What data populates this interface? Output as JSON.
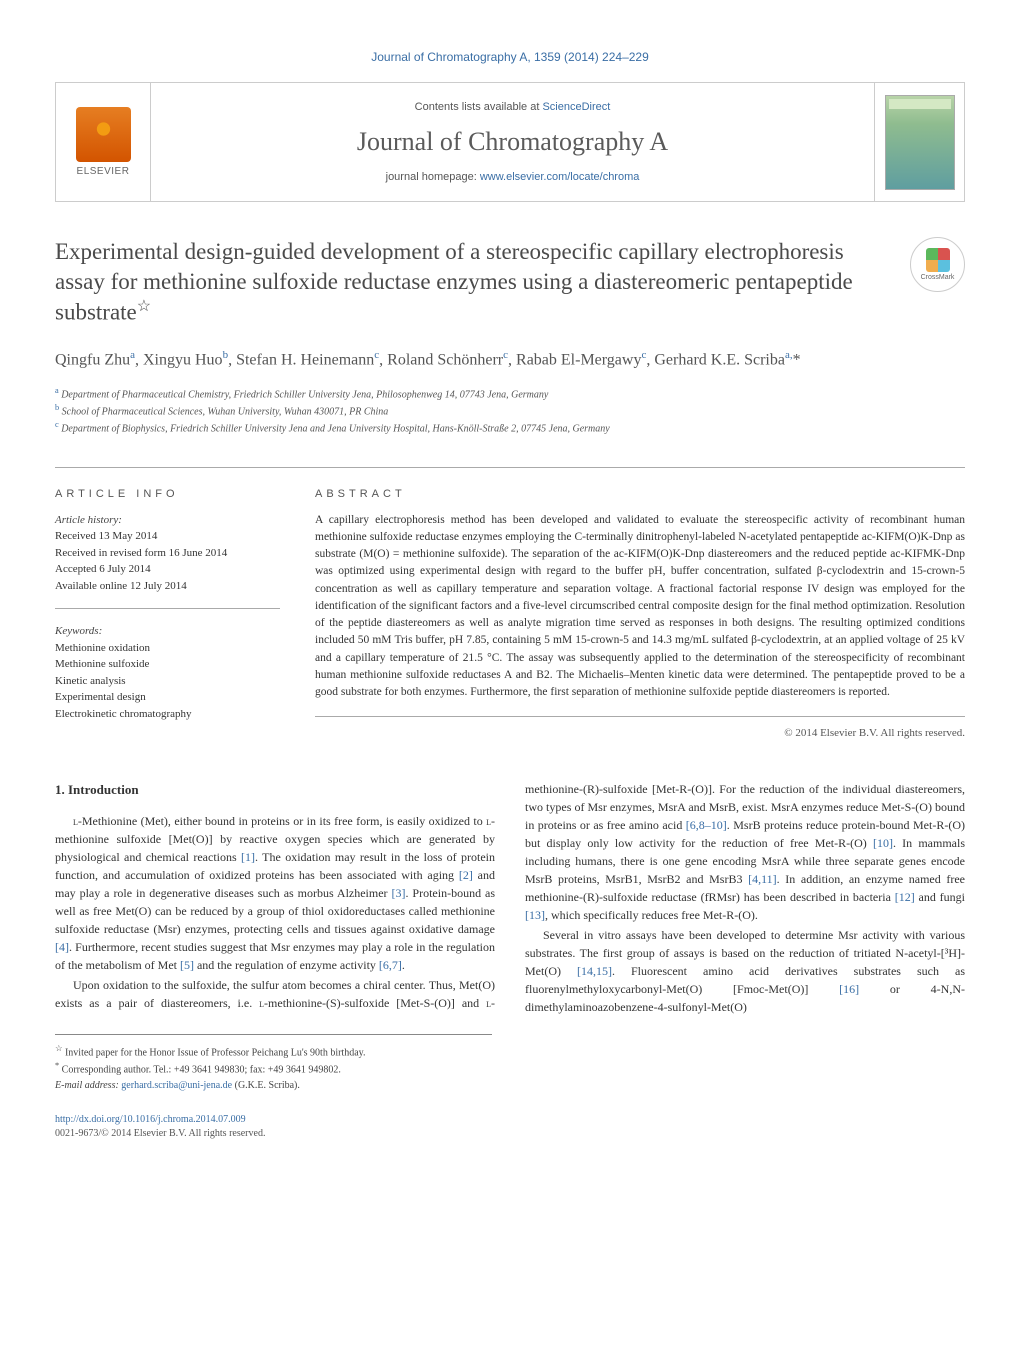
{
  "citation": "Journal of Chromatography A, 1359 (2014) 224–229",
  "header": {
    "elsevier": "ELSEVIER",
    "contents_prefix": "Contents lists available at ",
    "contents_link": "ScienceDirect",
    "journal_name": "Journal of Chromatography A",
    "homepage_prefix": "journal homepage: ",
    "homepage_link": "www.elsevier.com/locate/chroma"
  },
  "crossmark": "CrossMark",
  "title": "Experimental design-guided development of a stereospecific capillary electrophoresis assay for methionine sulfoxide reductase enzymes using a diastereomeric pentapeptide substrate",
  "title_star": "☆",
  "authors_html": "Qingfu Zhu<sup>a</sup>, Xingyu Huo<sup>b</sup>, Stefan H. Heinemann<sup>c</sup>, Roland Schönherr<sup>c</sup>, Rabab El-Mergawy<sup>c</sup>, Gerhard K.E. Scriba<sup>a,</sup>*",
  "affiliations": [
    {
      "sup": "a",
      "text": "Department of Pharmaceutical Chemistry, Friedrich Schiller University Jena, Philosophenweg 14, 07743 Jena, Germany"
    },
    {
      "sup": "b",
      "text": "School of Pharmaceutical Sciences, Wuhan University, Wuhan 430071, PR China"
    },
    {
      "sup": "c",
      "text": "Department of Biophysics, Friedrich Schiller University Jena and Jena University Hospital, Hans-Knöll-Straße 2, 07745 Jena, Germany"
    }
  ],
  "article_info": {
    "heading": "ARTICLE INFO",
    "history_label": "Article history:",
    "history": [
      "Received 13 May 2014",
      "Received in revised form 16 June 2014",
      "Accepted 6 July 2014",
      "Available online 12 July 2014"
    ],
    "keywords_label": "Keywords:",
    "keywords": [
      "Methionine oxidation",
      "Methionine sulfoxide",
      "Kinetic analysis",
      "Experimental design",
      "Electrokinetic chromatography"
    ]
  },
  "abstract": {
    "heading": "ABSTRACT",
    "text": "A capillary electrophoresis method has been developed and validated to evaluate the stereospecific activity of recombinant human methionine sulfoxide reductase enzymes employing the C-terminally dinitrophenyl-labeled N-acetylated pentapeptide ac-KIFM(O)K-Dnp as substrate (M(O) = methionine sulfoxide). The separation of the ac-KIFM(O)K-Dnp diastereomers and the reduced peptide ac-KIFMK-Dnp was optimized using experimental design with regard to the buffer pH, buffer concentration, sulfated β-cyclodextrin and 15-crown-5 concentration as well as capillary temperature and separation voltage. A fractional factorial response IV design was employed for the identification of the significant factors and a five-level circumscribed central composite design for the final method optimization. Resolution of the peptide diastereomers as well as analyte migration time served as responses in both designs. The resulting optimized conditions included 50 mM Tris buffer, pH 7.85, containing 5 mM 15-crown-5 and 14.3 mg/mL sulfated β-cyclodextrin, at an applied voltage of 25 kV and a capillary temperature of 21.5 °C. The assay was subsequently applied to the determination of the stereospecificity of recombinant human methionine sulfoxide reductases A and B2. The Michaelis–Menten kinetic data were determined. The pentapeptide proved to be a good substrate for both enzymes. Furthermore, the first separation of methionine sulfoxide peptide diastereomers is reported.",
    "copyright": "© 2014 Elsevier B.V. All rights reserved."
  },
  "body": {
    "intro_heading": "1.  Introduction",
    "p1_pre": "-Methionine (Met), either bound in proteins or in its free form, is easily oxidized to ",
    "p1_l2": "-methionine sulfoxide [Met(O)] by reactive oxygen species which are generated by physiological and chemical reactions ",
    "p1_r1": "[1]",
    "p1_mid1": ". The oxidation may result in the loss of protein function, and accumulation of oxidized proteins has been associated with aging ",
    "p1_r2": "[2]",
    "p1_mid2": " and may play a role in degenerative diseases such as morbus Alzheimer ",
    "p1_r3": "[3]",
    "p1_mid3": ". Protein-bound as well as free Met(O) can be reduced by a group of thiol oxidoreductases called methionine sulfoxide reductase (Msr) enzymes, protecting cells and tissues against oxidative damage ",
    "p1_r4": "[4]",
    "p1_mid4": ". Furthermore, recent studies suggest that Msr enzymes may play a role in the regulation of the metabolism of Met ",
    "p1_r5": "[5]",
    "p1_mid5": " and the regulation of enzyme activity ",
    "p1_r6": "[6,7]",
    "p1_end": ".",
    "p2_pre": "Upon oxidation to the sulfoxide, the sulfur atom becomes a chiral center. Thus, Met(O) exists as a pair of diastereomers, i.e. ",
    "p2_l1": "-methionine-(S)-sulfoxide [Met-S-(O)] and ",
    "p2_l2": "-methionine-(R)-sulfoxide [Met-R-(O)]. For the reduction of the individual diastereomers, two types of Msr enzymes, MsrA and MsrB, exist. MsrA enzymes reduce Met-S-(O) bound in proteins or as free amino acid ",
    "p2_r1": "[6,8–10]",
    "p2_mid1": ". MsrB proteins reduce protein-bound Met-R-(O) but display only low activity for the reduction of free Met-R-(O) ",
    "p2_r2": "[10]",
    "p2_mid2": ". In mammals including humans, there is one gene encoding MsrA while three separate genes encode MsrB proteins, MsrB1, MsrB2 and MsrB3 ",
    "p2_r3": "[4,11]",
    "p2_mid3": ". In addition, an enzyme named free methionine-(R)-sulfoxide reductase (fRMsr) has been described in bacteria ",
    "p2_r4": "[12]",
    "p2_mid4": " and fungi ",
    "p2_r5": "[13]",
    "p2_mid5": ", which specifically reduces free Met-R-(O).",
    "p3_pre": "Several in vitro assays have been developed to determine Msr activity with various substrates. The first group of assays is based on the reduction of tritiated N-acetyl-[³H]-Met(O) ",
    "p3_r1": "[14,15]",
    "p3_mid1": ". Fluorescent amino acid derivatives substrates such as fluorenylmethyloxycarbonyl-Met(O) [Fmoc-Met(O)] ",
    "p3_r2": "[16]",
    "p3_mid2": " or 4-N,N-dimethylaminoazobenzene-4-sulfonyl-Met(O)"
  },
  "footnotes": {
    "star": "☆",
    "star_text": "Invited paper for the Honor Issue of Professor Peichang Lu's 90th birthday.",
    "corr": "*",
    "corr_text": "Corresponding author. Tel.: +49 3641 949830; fax: +49 3641 949802.",
    "email_label": "E-mail address: ",
    "email": "gerhard.scriba@uni-jena.de",
    "email_suffix": " (G.K.E. Scriba)."
  },
  "bottom": {
    "doi": "http://dx.doi.org/10.1016/j.chroma.2014.07.009",
    "rights": "0021-9673/© 2014 Elsevier B.V. All rights reserved."
  }
}
